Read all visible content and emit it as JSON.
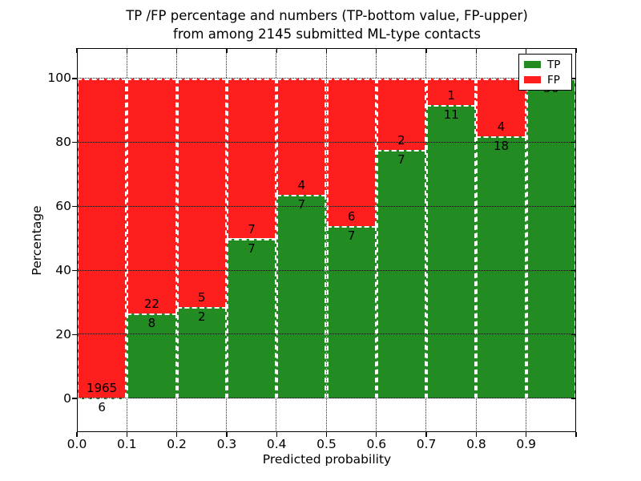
{
  "chart_data": {
    "type": "bar",
    "stacked": true,
    "orientation": "vertical",
    "title_lines": [
      "TP /FP percentage and numbers (TP-bottom value, FP-upper)",
      "from among 2145 submitted ML-type contacts"
    ],
    "xlabel": "Predicted probability",
    "ylabel": "Percentage",
    "total_submitted": 2145,
    "bin_width": 0.1,
    "bin_starts": [
      0.0,
      0.1,
      0.2,
      0.3,
      0.4,
      0.5,
      0.6,
      0.7,
      0.8,
      0.9
    ],
    "series": [
      {
        "name": "TP",
        "color": "#228B22",
        "counts": [
          6,
          8,
          2,
          7,
          7,
          7,
          7,
          11,
          18,
          56
        ]
      },
      {
        "name": "FP",
        "color": "#FF1E1E",
        "counts": [
          1965,
          22,
          5,
          7,
          4,
          6,
          2,
          1,
          4,
          0
        ]
      }
    ],
    "tp_percent_of_bin": [
      0.3,
      26.7,
      28.6,
      50.0,
      63.6,
      53.8,
      77.8,
      91.7,
      81.8,
      100.0
    ],
    "xlim": [
      0,
      1.0
    ],
    "ylim": [
      -10.5,
      109.5
    ],
    "x_tick_labels": [
      "0.0",
      "0.1",
      "0.2",
      "0.3",
      "0.4",
      "0.5",
      "0.6",
      "0.7",
      "0.8",
      "0.9"
    ],
    "x_tick_values": [
      0.0,
      0.1,
      0.2,
      0.3,
      0.4,
      0.5,
      0.6,
      0.7,
      0.8,
      0.9
    ],
    "y_tick_labels": [
      "0",
      "20",
      "40",
      "60",
      "80",
      "100"
    ],
    "y_tick_values": [
      0,
      20,
      40,
      60,
      80,
      100
    ],
    "grid": true,
    "grid_style": "dotted",
    "legend_position": "upper right"
  },
  "legend": {
    "items": [
      {
        "label": "TP",
        "color": "#228B22"
      },
      {
        "label": "FP",
        "color": "#FF1E1E"
      }
    ]
  }
}
